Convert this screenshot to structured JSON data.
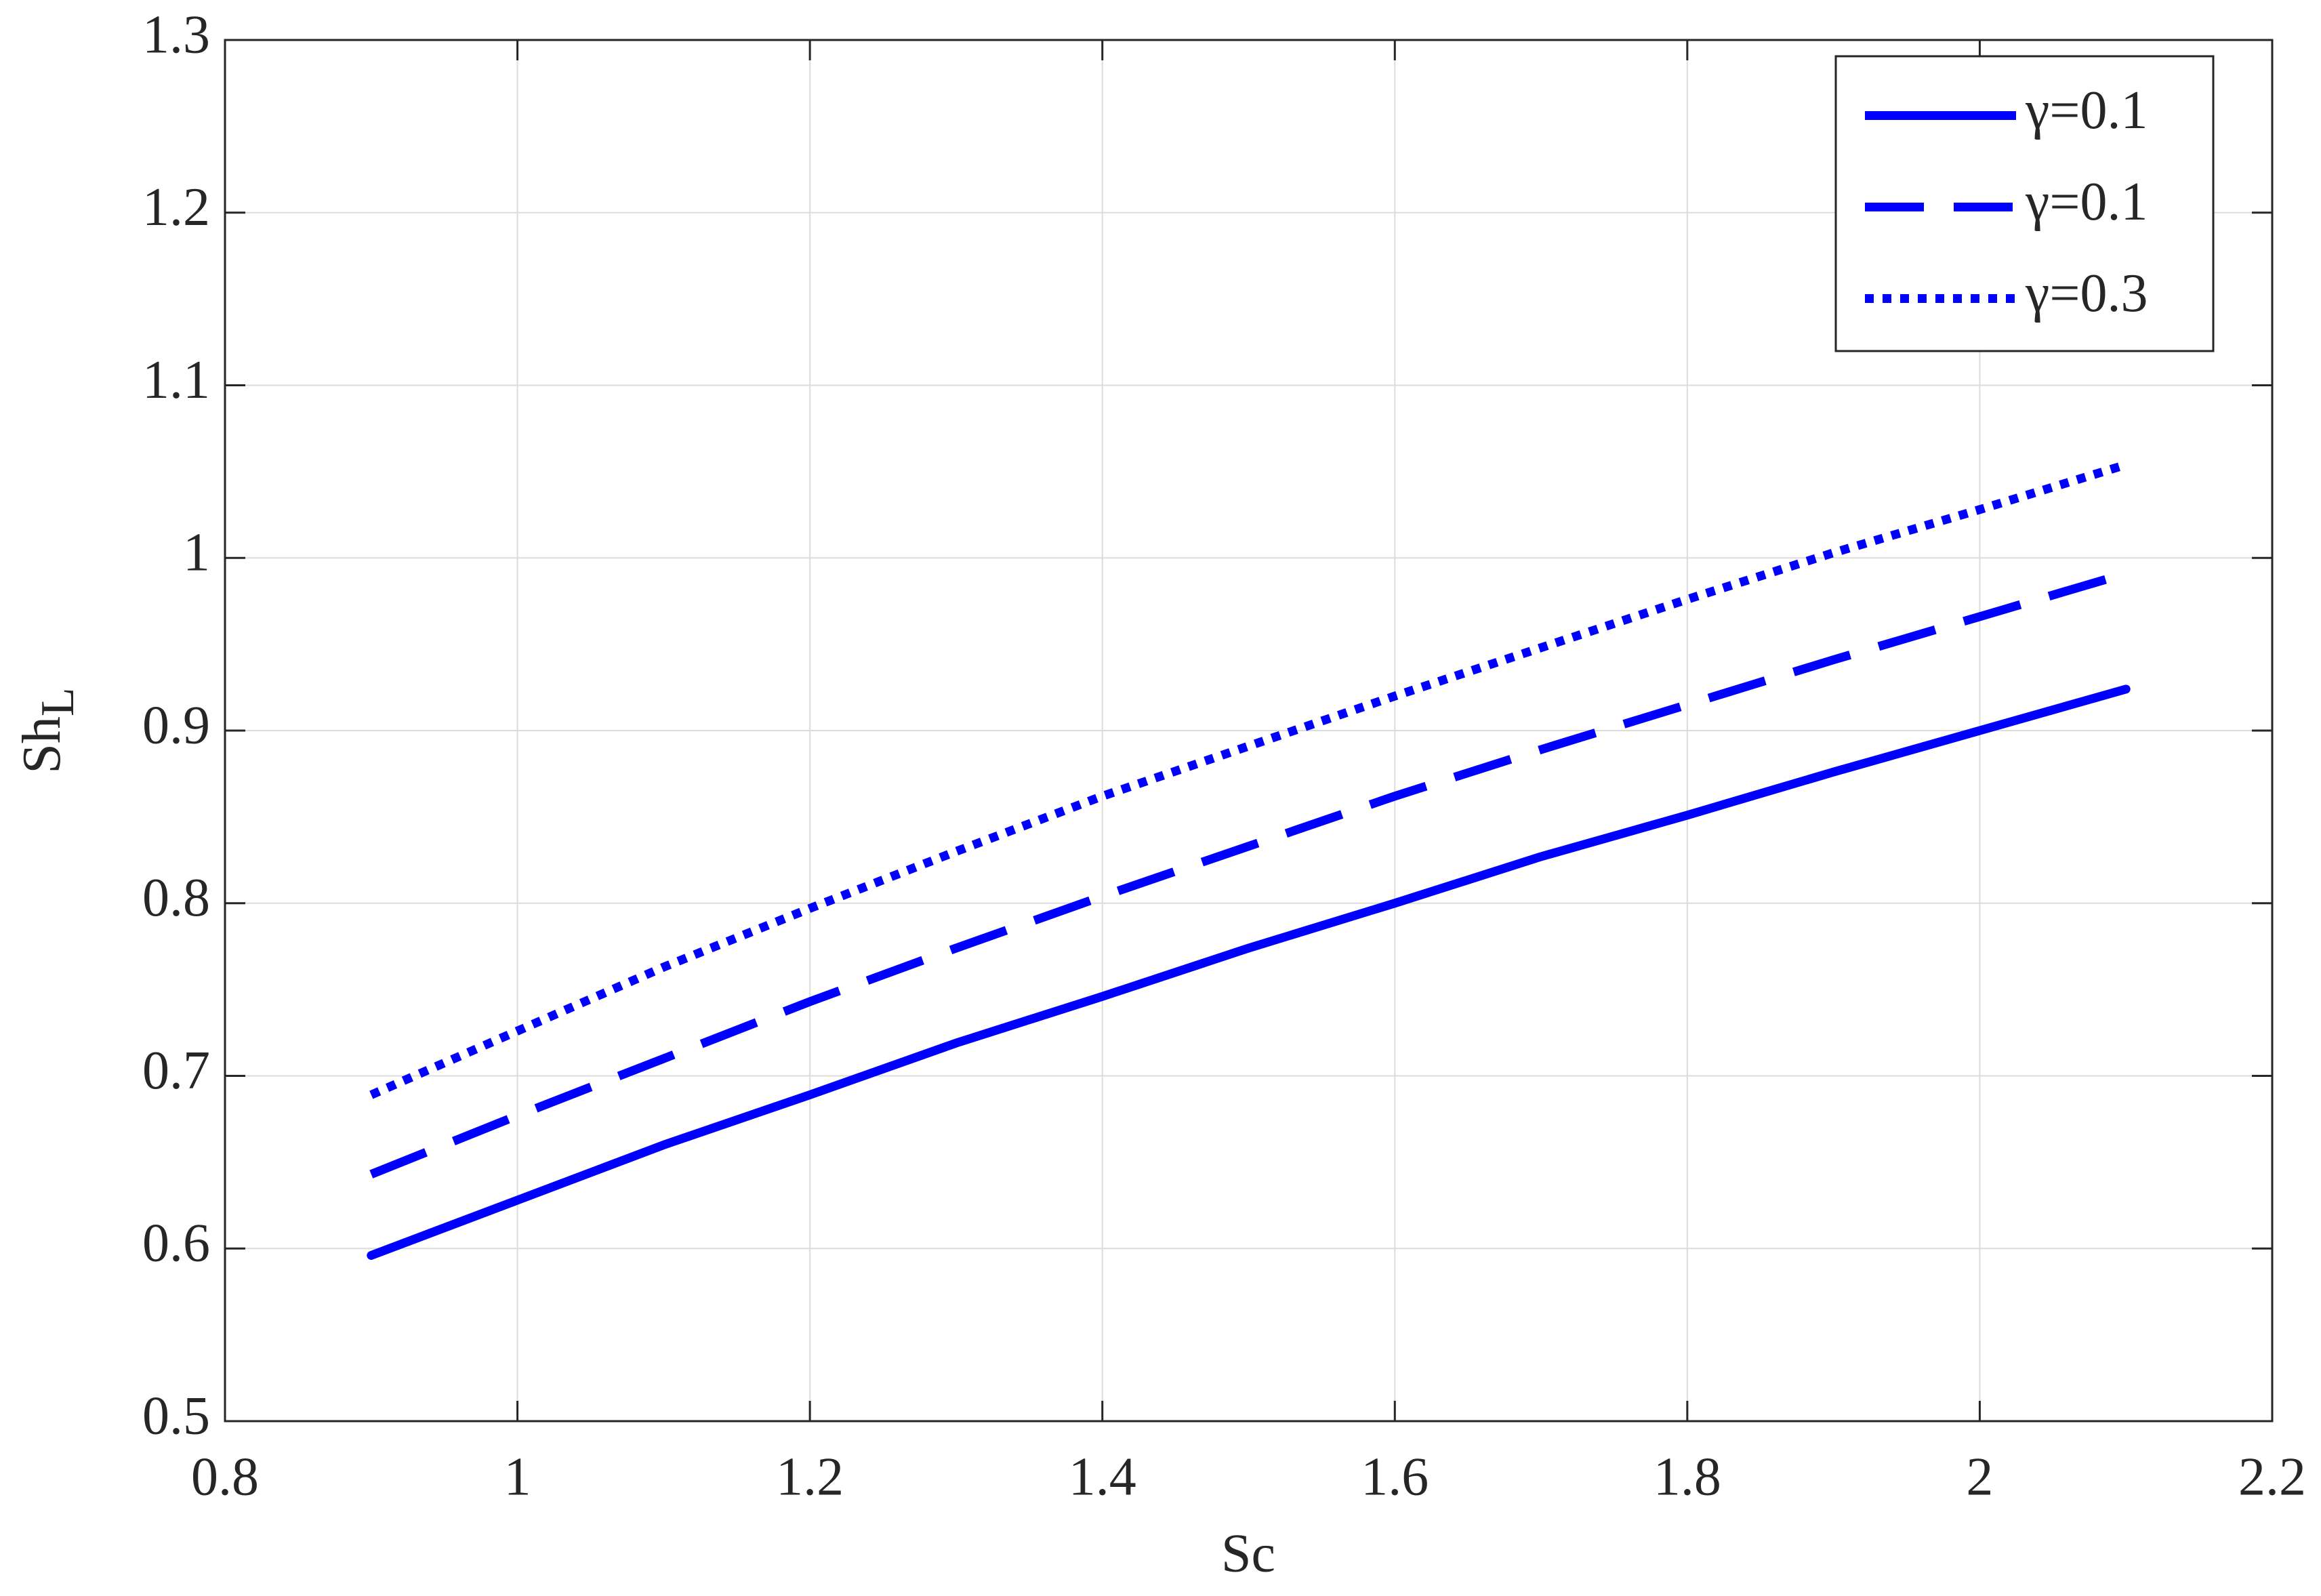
{
  "chart_data": {
    "type": "line",
    "xlabel": "Sc",
    "ylabel": "Sh",
    "ylabel_subscript": "L",
    "x": [
      0.9,
      1.0,
      1.1,
      1.2,
      1.3,
      1.4,
      1.5,
      1.6,
      1.7,
      1.8,
      1.9,
      2.0,
      2.1
    ],
    "series": [
      {
        "name": "γ=0.1",
        "color": "#0000ff",
        "dash": "solid",
        "values": [
          0.596,
          0.628,
          0.66,
          0.689,
          0.719,
          0.746,
          0.774,
          0.8,
          0.827,
          0.851,
          0.876,
          0.9,
          0.924
        ]
      },
      {
        "name": "γ=0.1",
        "color": "#0000ff",
        "dash": "dashed",
        "values": [
          0.643,
          0.677,
          0.71,
          0.743,
          0.774,
          0.804,
          0.833,
          0.862,
          0.889,
          0.915,
          0.941,
          0.966,
          0.991
        ]
      },
      {
        "name": "γ=0.3",
        "color": "#0000ff",
        "dash": "dotted",
        "values": [
          0.689,
          0.726,
          0.763,
          0.797,
          0.83,
          0.862,
          0.891,
          0.92,
          0.948,
          0.976,
          1.003,
          1.028,
          1.054
        ]
      }
    ],
    "xlim": [
      0.8,
      2.2
    ],
    "xticks": [
      0.8,
      1,
      1.2,
      1.4,
      1.6,
      1.8,
      2,
      2.2
    ],
    "ylim": [
      0.5,
      1.3
    ],
    "yticks": [
      0.5,
      0.6,
      0.7,
      0.8,
      0.9,
      1,
      1.1,
      1.2,
      1.3
    ],
    "grid": true,
    "legend": "upper right"
  }
}
